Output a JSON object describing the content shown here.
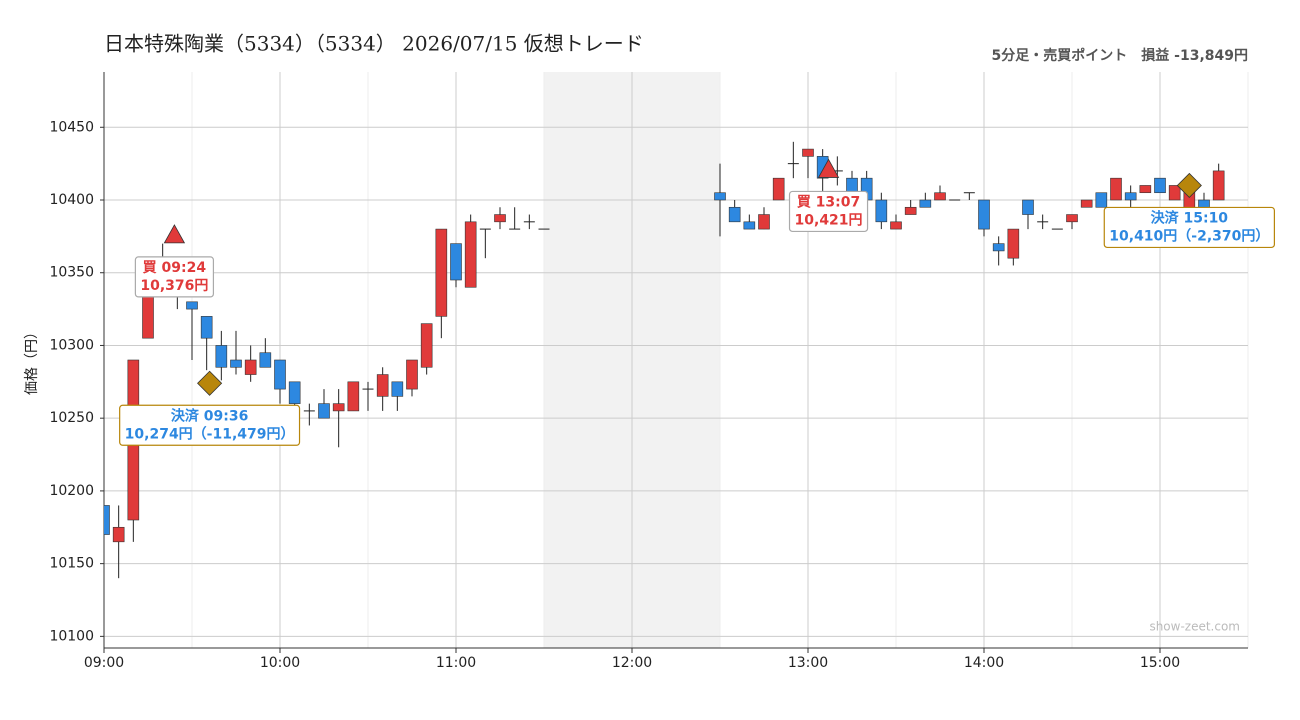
{
  "chart_data": {
    "type": "candlestick",
    "title": "日本特殊陶業（5334）（5334） 2026/07/15 仮想トレード",
    "subtitle": "5分足・売買ポイント　損益 -13,849円",
    "y_label": "価格（円）",
    "watermark": "show-zeet.com",
    "x": [
      "09:00",
      "09:05",
      "09:10",
      "09:15",
      "09:20",
      "09:25",
      "09:30",
      "09:35",
      "09:40",
      "09:45",
      "09:50",
      "09:55",
      "10:00",
      "10:05",
      "10:10",
      "10:15",
      "10:20",
      "10:25",
      "10:30",
      "10:35",
      "10:40",
      "10:45",
      "10:50",
      "10:55",
      "11:00",
      "11:05",
      "11:10",
      "11:15",
      "11:20",
      "11:25",
      "11:30",
      "12:30",
      "12:35",
      "12:40",
      "12:45",
      "12:50",
      "12:55",
      "13:00",
      "13:05",
      "13:10",
      "13:15",
      "13:20",
      "13:25",
      "13:30",
      "13:35",
      "13:40",
      "13:45",
      "13:50",
      "13:55",
      "14:00",
      "14:05",
      "14:10",
      "14:15",
      "14:20",
      "14:25",
      "14:30",
      "14:35",
      "14:40",
      "14:45",
      "14:50",
      "14:55",
      "15:00",
      "15:05",
      "15:10",
      "15:15",
      "15:20"
    ],
    "open": [
      10190,
      10165,
      10180,
      10305,
      10345,
      10336,
      10330,
      10320,
      10300,
      10290,
      10280,
      10295,
      10290,
      10275,
      10255,
      10260,
      10255,
      10255,
      10270,
      10265,
      10275,
      10270,
      10285,
      10320,
      10370,
      10340,
      10380,
      10385,
      10380,
      10385,
      10380,
      10405,
      10395,
      10385,
      10380,
      10400,
      10425,
      10430,
      10430,
      10420,
      10415,
      10415,
      10400,
      10380,
      10390,
      10400,
      10400,
      10400,
      10405,
      10400,
      10370,
      10360,
      10400,
      10385,
      10380,
      10385,
      10395,
      10405,
      10400,
      10405,
      10405,
      10415,
      10400,
      10390,
      10400,
      10400
    ],
    "high": [
      10190,
      10190,
      10290,
      10350,
      10370,
      10338,
      10330,
      10320,
      10310,
      10310,
      10300,
      10305,
      10290,
      10275,
      10260,
      10270,
      10270,
      10275,
      10275,
      10285,
      10275,
      10290,
      10315,
      10380,
      10370,
      10390,
      10380,
      10395,
      10395,
      10390,
      10380,
      10425,
      10400,
      10390,
      10395,
      10415,
      10440,
      10435,
      10435,
      10430,
      10420,
      10420,
      10405,
      10390,
      10400,
      10405,
      10410,
      10400,
      10405,
      10400,
      10375,
      10380,
      10400,
      10390,
      10380,
      10390,
      10400,
      10405,
      10415,
      10410,
      10410,
      10415,
      10410,
      10410,
      10405,
      10425
    ],
    "low": [
      10170,
      10140,
      10165,
      10305,
      10335,
      10325,
      10290,
      10283,
      10276,
      10280,
      10275,
      10285,
      10260,
      10255,
      10245,
      10250,
      10230,
      10255,
      10255,
      10255,
      10255,
      10265,
      10280,
      10305,
      10340,
      10340,
      10360,
      10380,
      10380,
      10380,
      10380,
      10375,
      10385,
      10380,
      10380,
      10400,
      10415,
      10415,
      10400,
      10410,
      10395,
      10395,
      10380,
      10380,
      10390,
      10395,
      10400,
      10400,
      10400,
      10375,
      10355,
      10355,
      10380,
      10380,
      10380,
      10380,
      10395,
      10395,
      10400,
      10395,
      10405,
      10405,
      10400,
      10390,
      10390,
      10400
    ],
    "close": [
      10170,
      10175,
      10290,
      10345,
      10340,
      10335,
      10325,
      10305,
      10285,
      10285,
      10290,
      10285,
      10270,
      10260,
      10255,
      10250,
      10260,
      10275,
      10270,
      10280,
      10265,
      10290,
      10315,
      10380,
      10345,
      10385,
      10380,
      10390,
      10380,
      10385,
      10380,
      10400,
      10385,
      10380,
      10390,
      10415,
      10425,
      10435,
      10415,
      10420,
      10405,
      10400,
      10385,
      10385,
      10395,
      10395,
      10405,
      10400,
      10405,
      10380,
      10365,
      10380,
      10390,
      10385,
      10380,
      10390,
      10400,
      10395,
      10415,
      10400,
      10410,
      10405,
      10410,
      10410,
      10395,
      10420
    ],
    "up_color": "#e03a3a",
    "down_color": "#2d88e0",
    "xlim": [
      "09:00",
      "15:30"
    ],
    "xticks": [
      "09:00",
      "10:00",
      "11:00",
      "12:00",
      "13:00",
      "14:00",
      "15:00"
    ],
    "ylim": [
      10092,
      10488
    ],
    "yticks": [
      10100,
      10150,
      10200,
      10250,
      10300,
      10350,
      10400,
      10450
    ],
    "grid": true,
    "shaded_break": [
      "11:30",
      "12:30"
    ],
    "trades": [
      {
        "kind": "buy",
        "time": "09:24",
        "price": 10376,
        "label": "買 09:24",
        "price_label": "10,376円"
      },
      {
        "kind": "settle",
        "time": "09:36",
        "price": 10274,
        "label": "決済 09:36",
        "price_label": "10,274円（-11,479円）"
      },
      {
        "kind": "buy",
        "time": "13:07",
        "price": 10421,
        "label": "買 13:07",
        "price_label": "10,421円"
      },
      {
        "kind": "settle",
        "time": "15:10",
        "price": 10410,
        "label": "決済 15:10",
        "price_label": "10,410円（-2,370円）"
      }
    ]
  }
}
